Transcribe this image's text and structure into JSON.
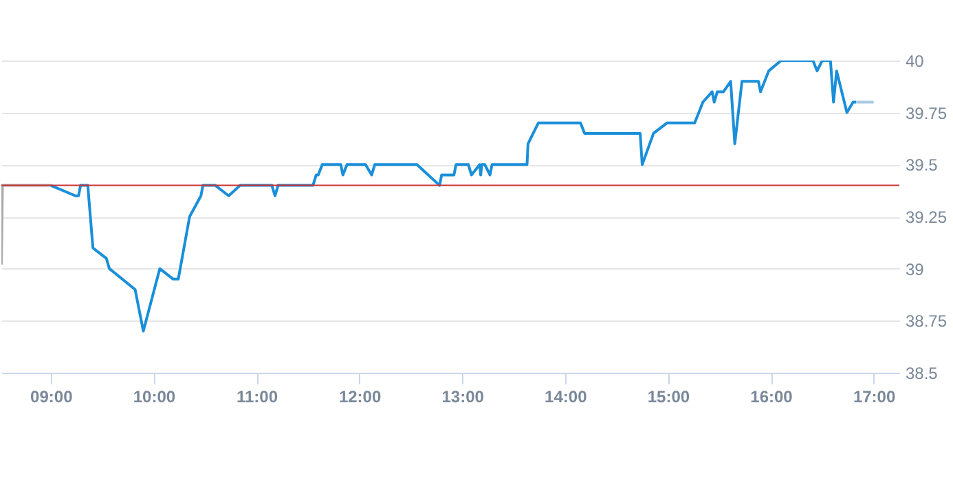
{
  "chart_data": {
    "type": "line",
    "x": [
      9.0,
      9.24,
      9.27,
      9.29,
      9.36,
      9.41,
      9.46,
      9.54,
      9.57,
      9.82,
      9.9,
      10.06,
      10.19,
      10.24,
      10.35,
      10.46,
      10.48,
      10.6,
      10.73,
      10.84,
      11.15,
      11.18,
      11.21,
      11.55,
      11.58,
      11.6,
      11.64,
      11.82,
      11.84,
      11.88,
      12.06,
      12.12,
      12.15,
      12.56,
      12.78,
      12.8,
      12.92,
      12.94,
      13.06,
      13.09,
      13.17,
      13.18,
      13.19,
      13.22,
      13.27,
      13.29,
      13.63,
      13.64,
      13.69,
      13.74,
      14.15,
      14.19,
      14.73,
      14.75,
      14.86,
      14.99,
      15.26,
      15.34,
      15.43,
      15.45,
      15.48,
      15.54,
      15.61,
      15.65,
      15.72,
      15.88,
      15.9,
      15.98,
      16.1,
      16.41,
      16.45,
      16.5,
      16.58,
      16.61,
      16.64,
      16.74,
      16.8,
      16.83
    ],
    "series": [
      {
        "color": "#1a8fd9",
        "values": [
          39.4,
          39.35,
          39.35,
          39.4,
          39.4,
          39.1,
          39.08,
          39.05,
          39.0,
          38.9,
          38.7,
          39.0,
          38.95,
          38.95,
          39.25,
          39.35,
          39.4,
          39.4,
          39.35,
          39.4,
          39.4,
          39.35,
          39.4,
          39.4,
          39.45,
          39.45,
          39.5,
          39.5,
          39.45,
          39.5,
          39.5,
          39.45,
          39.5,
          39.5,
          39.4,
          39.45,
          39.45,
          39.5,
          39.5,
          39.45,
          39.5,
          39.45,
          39.5,
          39.5,
          39.45,
          39.5,
          39.5,
          39.6,
          39.65,
          39.7,
          39.7,
          39.65,
          39.65,
          39.5,
          39.65,
          39.7,
          39.7,
          39.8,
          39.85,
          39.8,
          39.85,
          39.85,
          39.9,
          39.6,
          39.9,
          39.9,
          39.85,
          39.95,
          40.0,
          40.0,
          39.95,
          40.0,
          40.0,
          39.8,
          39.95,
          39.75,
          39.8,
          39.8
        ]
      },
      {
        "color": "#aaaaaa",
        "x": [
          8.52,
          8.53,
          9.0
        ],
        "values": [
          39.02,
          39.4,
          39.4
        ]
      },
      {
        "color": "#a8cbe3",
        "x": [
          16.83,
          17.0
        ],
        "values": [
          39.8,
          39.8
        ]
      }
    ],
    "xlim": [
      8.52,
      17.25
    ],
    "xticks": [
      {
        "value": 9,
        "label": "09:00"
      },
      {
        "value": 10,
        "label": "10:00"
      },
      {
        "value": 11,
        "label": "11:00"
      },
      {
        "value": 12,
        "label": "12:00"
      },
      {
        "value": 13,
        "label": "13:00"
      },
      {
        "value": 14,
        "label": "14:00"
      },
      {
        "value": 15,
        "label": "15:00"
      },
      {
        "value": 16,
        "label": "16:00"
      },
      {
        "value": 17,
        "label": "17:00"
      }
    ],
    "ylim": [
      38.5,
      40
    ],
    "yticks": [
      38.5,
      38.75,
      39,
      39.25,
      39.5,
      39.75,
      40
    ],
    "grid": "y",
    "marker": "none",
    "line_style": "solid",
    "ref_lines": [
      {
        "axis": "y",
        "value": 39.4,
        "color": "#cc3333"
      }
    ]
  }
}
